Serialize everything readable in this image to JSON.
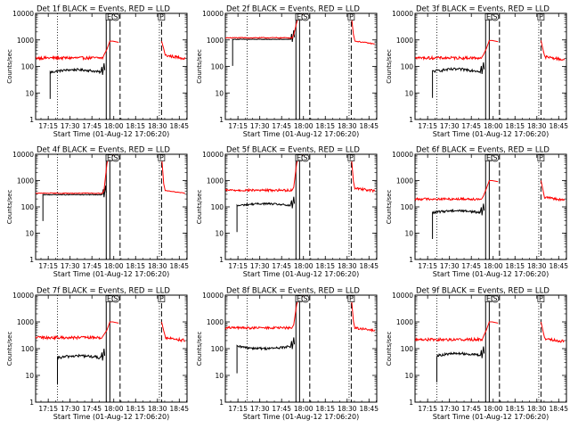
{
  "chart_data": {
    "type": "line",
    "layout": "3x3 grid of time-series panels",
    "shared": {
      "series_names": [
        "Events",
        "LLD"
      ],
      "colors": {
        "Events": "#000000",
        "LLD": "#ff0000",
        "axes": "#000000"
      },
      "ylabel": "Counts/sec",
      "xlabel": "Start Time (01-Aug-12 17:06:20)",
      "yscale": "log",
      "ylim": [
        1,
        10000
      ],
      "y_ticks": [
        1,
        10,
        100,
        1000,
        10000
      ],
      "y_tick_labels": [
        "1",
        "10",
        "100",
        "1000",
        "10000"
      ],
      "xlim_minutes": [
        0,
        104
      ],
      "x_ticks_minutes": [
        8.67,
        23.67,
        38.67,
        53.67,
        68.67,
        83.67,
        98.67
      ],
      "x_tick_labels": [
        "17:15",
        "17:30",
        "17:45",
        "18:00",
        "18:15",
        "18:30",
        "18:45"
      ],
      "markers": [
        {
          "label": "E",
          "time_minutes": 50.5,
          "line": "solid"
        },
        {
          "label": "P",
          "time_minutes": 86.5,
          "line": "dashed"
        }
      ],
      "special_marker": {
        "label": "S",
        "time_minutes": 55
      },
      "dotted_lines_minutes": [
        15,
        85
      ],
      "solid_lines_minutes": [
        48.5,
        51
      ],
      "dashed_lines_minutes": [
        58,
        86.5
      ]
    },
    "panels": [
      {
        "title": "Det 1f BLACK = Events, RED = LLD",
        "events": {
          "level": 60,
          "bulge": 1.25,
          "noise": 0.1,
          "start": 10,
          "end": 45
        },
        "lld": {
          "level": 210,
          "noise": 0.12,
          "peak": 900,
          "after": 260
        }
      },
      {
        "title": "Det 2f BLACK = Events, RED = LLD",
        "events": {
          "level": 1050,
          "bulge": 1.0,
          "noise": 0.02,
          "start": 5,
          "end": 45
        },
        "lld": {
          "level": 1200,
          "noise": 0.04,
          "peak": 9000,
          "after": 900
        }
      },
      {
        "title": "Det 3f BLACK = Events, RED = LLD",
        "events": {
          "level": 65,
          "bulge": 1.2,
          "noise": 0.12,
          "start": 12,
          "end": 45
        },
        "lld": {
          "level": 210,
          "noise": 0.12,
          "peak": 950,
          "after": 230
        }
      },
      {
        "title": "Det 4f BLACK = Events, RED = LLD",
        "events": {
          "level": 290,
          "bulge": 1.0,
          "noise": 0.03,
          "start": 5,
          "end": 46
        },
        "lld": {
          "level": 330,
          "noise": 0.03,
          "peak": 9000,
          "after": 420
        }
      },
      {
        "title": "Det 5f BLACK = Events, RED = LLD",
        "events": {
          "level": 110,
          "bulge": 1.2,
          "noise": 0.08,
          "start": 8,
          "end": 45
        },
        "lld": {
          "level": 430,
          "noise": 0.1,
          "peak": 9000,
          "after": 520
        }
      },
      {
        "title": "Det 6f BLACK = Events, RED = LLD",
        "events": {
          "level": 60,
          "bulge": 1.2,
          "noise": 0.1,
          "start": 12,
          "end": 45
        },
        "lld": {
          "level": 200,
          "noise": 0.1,
          "peak": 1000,
          "after": 230
        }
      },
      {
        "title": "Det 7f BLACK = Events, RED = LLD",
        "events": {
          "level": 45,
          "bulge": 1.2,
          "noise": 0.12,
          "start": 15,
          "end": 45
        },
        "lld": {
          "level": 260,
          "noise": 0.12,
          "peak": 1000,
          "after": 260
        }
      },
      {
        "title": "Det 8f BLACK = Events, RED = LLD",
        "events": {
          "level": 120,
          "bulge": 0.85,
          "noise": 0.1,
          "start": 8,
          "end": 45
        },
        "lld": {
          "level": 600,
          "noise": 0.1,
          "peak": 9000,
          "after": 600
        }
      },
      {
        "title": "Det 9f BLACK = Events, RED = LLD",
        "events": {
          "level": 55,
          "bulge": 1.2,
          "noise": 0.1,
          "start": 15,
          "end": 45
        },
        "lld": {
          "level": 220,
          "noise": 0.12,
          "peak": 1000,
          "after": 240
        }
      }
    ]
  }
}
